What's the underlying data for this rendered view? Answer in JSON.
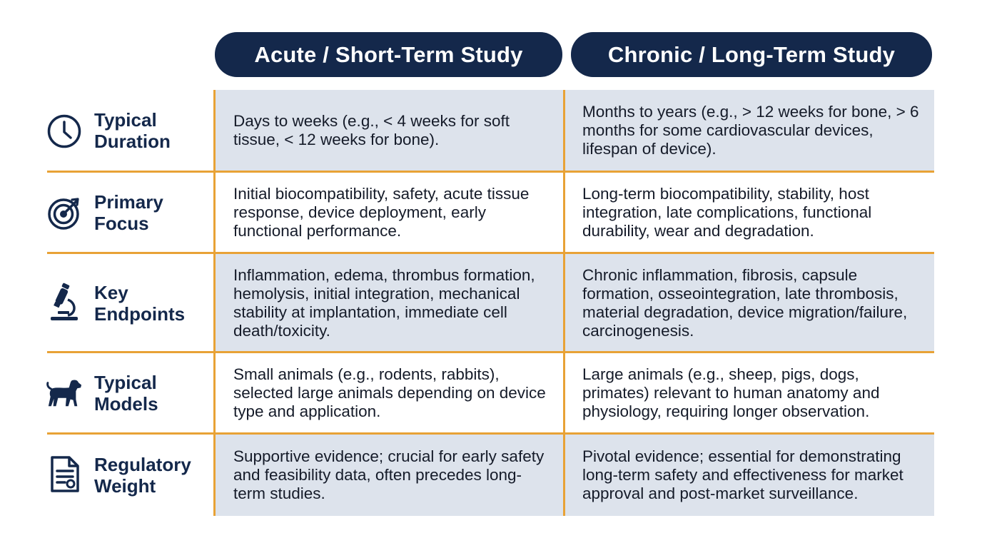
{
  "headers": {
    "acute": "Acute / Short-Term Study",
    "chronic": "Chronic / Long-Term Study"
  },
  "rows": [
    {
      "icon": "clock-icon",
      "label": "Typical\nDuration",
      "acute": "Days to weeks (e.g., < 4 weeks for soft tissue, < 12 weeks for bone).",
      "chronic": "Months to years (e.g., > 12 weeks for bone, > 6 months for some cardiovascular devices, lifespan of device)."
    },
    {
      "icon": "target-icon",
      "label": "Primary\nFocus",
      "acute": "Initial biocompatibility, safety, acute tissue response, device deployment, early functional performance.",
      "chronic": "Long-term biocompatibility, stability, host integration, late complications, functional durability, wear and degradation."
    },
    {
      "icon": "microscope-icon",
      "label": "Key\nEndpoints",
      "acute": "Inflammation, edema, thrombus formation, hemolysis, initial integration, mechanical stability at implantation, immediate cell death/toxicity.",
      "chronic": "Chronic inflammation, fibrosis, capsule formation, osseointegration, late thrombosis, material degradation, device migration/failure, carcinogenesis."
    },
    {
      "icon": "dog-icon",
      "label": "Typical\nModels",
      "acute": "Small animals (e.g., rodents, rabbits), selected large animals depending on device type and application.",
      "chronic": "Large animals (e.g., sheep, pigs, dogs, primates) relevant to human anatomy and physiology, requiring longer observation."
    },
    {
      "icon": "document-icon",
      "label": "Regulatory\nWeight",
      "acute": "Supportive evidence; crucial for early safety and feasibility data, often precedes long-term studies.",
      "chronic": "Pivotal evidence; essential for demonstrating long-term safety and effectiveness for market approval and post-market surveillance."
    }
  ],
  "colors": {
    "header_bg": "#14284b",
    "accent_lines": "#e8a236",
    "shaded_cell": "#dde3ec",
    "label_text": "#14284b"
  }
}
